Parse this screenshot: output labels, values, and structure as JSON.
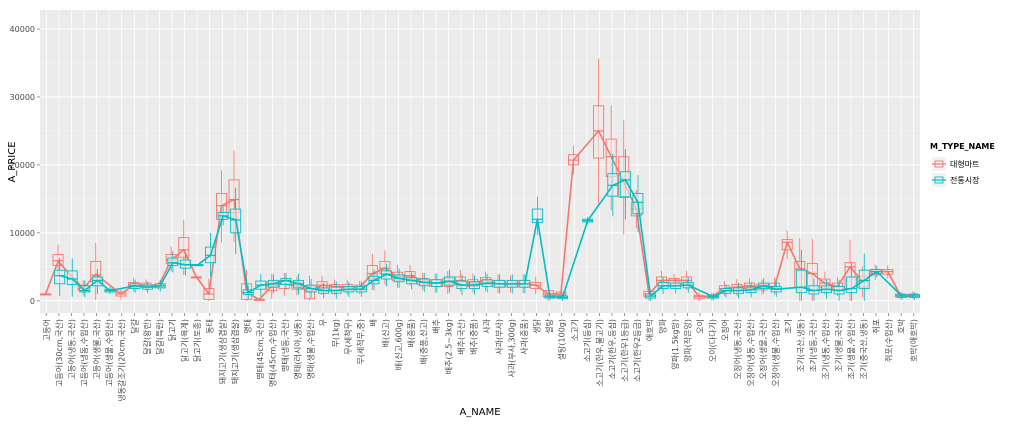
{
  "chart_data": {
    "type": "box_line",
    "xlabel": "A_NAME",
    "ylabel": "A_PRICE",
    "y_ticks": [
      0,
      10000,
      20000,
      30000,
      40000
    ],
    "ylim": [
      -1800,
      42800
    ],
    "grid": true,
    "background": "#ebebeb",
    "legend": {
      "title": "M_TYPE_NAME",
      "position": "right",
      "entries": [
        {
          "label": "대형마트",
          "color": "#f8766d"
        },
        {
          "label": "전통시장",
          "color": "#00bfc4"
        }
      ]
    },
    "categories": [
      "고등어",
      "고등어(30cm,국산)",
      "고등어(냉동,국산)",
      "고등어(냉동,수입산)",
      "고등어(생물,국산)",
      "고등어(생물,수입산)",
      "냉동갈조기(20cm,국산)",
      "달걀",
      "달걀(왕란)",
      "달걀(특란)",
      "닭고기",
      "닭고기(육계)",
      "닭고기(토종)",
      "동태",
      "돼지고기(생삼겹살)",
      "돼지고기(생삼겹살)",
      "명태",
      "명태(45cm,국산)",
      "명태(45cm,수입산)",
      "명태(냉동,국산)",
      "명태(러시아,냉동)",
      "명태(생물,수입산)",
      "무",
      "무(1kg)",
      "무(세척무)",
      "무(세척무,중)",
      "배",
      "배(신고)",
      "배(신고,600g)",
      "배(중품)",
      "배(중품,신고)",
      "배추",
      "배추(2.5~3kg)",
      "배추(국산)",
      "배추(중품)",
      "사과",
      "사과(부사)",
      "사과(부사,300g)",
      "사과(중품)",
      "생닭",
      "설탕",
      "설탕(100g)",
      "소고기",
      "소고기(등심)",
      "소고기(한우,불고기)",
      "소고기(한우,등심)",
      "소고기(한우1등급)",
      "소고기(한우2등급)",
      "애호박",
      "양파",
      "양파(1.5kg망)",
      "양파(작은망)",
      "오이",
      "오이(다다기)",
      "오징어",
      "오징어(냉동,국산)",
      "오징어(냉동,수입산)",
      "오징어(생물,국산)",
      "오징어(생물,수입산)",
      "조기",
      "조기(국산,냉동)",
      "조기(냉동,국산)",
      "조기(냉동,수입산)",
      "조기(생물,국산)",
      "조기(생물,수입산)",
      "조기(중국산,냉동)",
      "쥐포",
      "쥐포(수입산)",
      "호박",
      "호박(애호박)"
    ],
    "series": [
      {
        "name": "대형마트",
        "color": "#f8766d",
        "mean": [
          1000,
          5800,
          null,
          1800,
          3900,
          null,
          1000,
          2300,
          2300,
          2200,
          6000,
          7500,
          3500,
          1000,
          14000,
          14900,
          1200,
          200,
          2200,
          2500,
          2200,
          1300,
          2300,
          2100,
          2000,
          2000,
          4000,
          4800,
          3500,
          3700,
          2900,
          2600,
          2700,
          3000,
          2600,
          3000,
          2500,
          2400,
          2500,
          2300,
          1000,
          1000,
          20700,
          null,
          25000,
          21200,
          17500,
          13500,
          1000,
          3000,
          3000,
          3000,
          600,
          600,
          1800,
          2000,
          2200,
          2000,
          2100,
          8600,
          4700,
          4000,
          2600,
          2100,
          5000,
          2800,
          4300,
          4300,
          800,
          800
        ],
        "box": [
          [
            1000,
            1000,
            1000
          ],
          [
            5200,
            5900,
            6800
          ],
          null,
          [
            1500,
            1800,
            2300
          ],
          [
            2800,
            3800,
            5800
          ],
          null,
          [
            700,
            1000,
            1300
          ],
          [
            2000,
            2300,
            2700
          ],
          [
            2000,
            2300,
            2600
          ],
          [
            2000,
            2200,
            2400
          ],
          [
            5500,
            6000,
            6800
          ],
          [
            6400,
            7500,
            9300
          ],
          [
            3500,
            3500,
            3500
          ],
          [
            200,
            1000,
            1800
          ],
          [
            12000,
            14000,
            15800
          ],
          [
            13000,
            14900,
            17800
          ],
          [
            200,
            1200,
            2500
          ],
          [
            200,
            200,
            200
          ],
          [
            1500,
            2200,
            2800
          ],
          [
            1800,
            2500,
            3000
          ],
          [
            1700,
            2200,
            2700
          ],
          [
            300,
            1300,
            2100
          ],
          [
            1800,
            2300,
            2800
          ],
          [
            1600,
            2100,
            2400
          ],
          [
            1600,
            2000,
            2400
          ],
          [
            1600,
            2000,
            2300
          ],
          [
            3300,
            4000,
            5200
          ],
          [
            4000,
            4800,
            5800
          ],
          [
            3000,
            3500,
            4200
          ],
          [
            3200,
            3700,
            4300
          ],
          [
            2400,
            2900,
            3300
          ],
          [
            2100,
            2600,
            3100
          ],
          [
            2100,
            2700,
            3300
          ],
          [
            2400,
            3000,
            3500
          ],
          [
            2100,
            2600,
            3100
          ],
          [
            2400,
            3000,
            3400
          ],
          [
            2000,
            2500,
            3000
          ],
          [
            2000,
            2400,
            2900
          ],
          [
            2000,
            2500,
            3000
          ],
          [
            1800,
            2300,
            2700
          ],
          [
            600,
            1000,
            1500
          ],
          [
            800,
            1000,
            1300
          ],
          [
            20000,
            20700,
            21500
          ],
          null,
          [
            21000,
            25000,
            28700
          ],
          [
            18300,
            21200,
            23800
          ],
          [
            15200,
            17500,
            21200
          ],
          [
            12500,
            13500,
            14500
          ],
          [
            600,
            1000,
            1400
          ],
          [
            2500,
            3000,
            3500
          ],
          [
            2600,
            3000,
            3300
          ],
          [
            2500,
            3000,
            3500
          ],
          [
            300,
            600,
            800
          ],
          [
            400,
            600,
            800
          ],
          [
            1400,
            1800,
            2200
          ],
          [
            1500,
            2000,
            2400
          ],
          [
            1800,
            2200,
            2600
          ],
          [
            1600,
            2000,
            2400
          ],
          [
            1700,
            2100,
            2600
          ],
          [
            7500,
            8600,
            9000
          ],
          [
            2000,
            4700,
            5800
          ],
          [
            1500,
            4000,
            5500
          ],
          [
            2000,
            2600,
            3200
          ],
          [
            1600,
            2100,
            2600
          ],
          [
            1800,
            5000,
            5600
          ],
          [
            2000,
            2800,
            3600
          ],
          [
            3800,
            4300,
            4600
          ],
          [
            3900,
            4300,
            4600
          ],
          [
            600,
            800,
            1000
          ],
          [
            600,
            800,
            1000
          ]
        ]
      },
      {
        "name": "전통시장",
        "color": "#00bfc4",
        "mean": [
          null,
          3700,
          3200,
          1500,
          3000,
          1500,
          null,
          2200,
          2000,
          2200,
          5600,
          5300,
          5300,
          6700,
          12500,
          11900,
          1200,
          2300,
          2500,
          3000,
          2500,
          1800,
          1500,
          1500,
          1700,
          1700,
          3000,
          3900,
          3300,
          3000,
          2700,
          2600,
          2900,
          2300,
          2300,
          2600,
          2500,
          2500,
          2500,
          12000,
          600,
          500,
          null,
          11800,
          null,
          17000,
          17800,
          14500,
          700,
          2200,
          2200,
          2300,
          null,
          600,
          1500,
          1500,
          1600,
          2200,
          1700,
          null,
          2000,
          1500,
          1700,
          1500,
          1800,
          3000,
          4300,
          null,
          700,
          700
        ],
        "box": [
          null,
          [
            2500,
            3700,
            4500
          ],
          [
            2400,
            3200,
            4400
          ],
          [
            1300,
            1500,
            2200
          ],
          [
            2200,
            3000,
            3500
          ],
          [
            1300,
            1500,
            1700
          ],
          null,
          [
            1800,
            2200,
            2500
          ],
          [
            1700,
            2000,
            2300
          ],
          [
            1900,
            2200,
            2500
          ],
          [
            5200,
            5600,
            6300
          ],
          [
            4800,
            5300,
            6000
          ],
          [
            5300,
            5300,
            5300
          ],
          [
            5600,
            6700,
            7900
          ],
          [
            12000,
            12500,
            13000
          ],
          [
            10000,
            11900,
            13500
          ],
          [
            900,
            1200,
            1600
          ],
          [
            1700,
            2300,
            2900
          ],
          [
            2000,
            2500,
            3000
          ],
          [
            2400,
            3000,
            3300
          ],
          [
            1900,
            2500,
            3000
          ],
          [
            1300,
            1800,
            2300
          ],
          [
            1100,
            1500,
            1900
          ],
          [
            1100,
            1500,
            2000
          ],
          [
            1300,
            1700,
            2100
          ],
          [
            1300,
            1700,
            2100
          ],
          [
            2500,
            3000,
            3600
          ],
          [
            3200,
            3900,
            4400
          ],
          [
            2800,
            3300,
            3800
          ],
          [
            2500,
            3000,
            3400
          ],
          [
            2200,
            2700,
            3200
          ],
          [
            2100,
            2600,
            3100
          ],
          [
            2300,
            2900,
            3500
          ],
          [
            1800,
            2300,
            2900
          ],
          [
            1800,
            2300,
            2800
          ],
          [
            2100,
            2600,
            3100
          ],
          [
            2000,
            2500,
            3000
          ],
          [
            2000,
            2500,
            3000
          ],
          [
            2000,
            2500,
            3000
          ],
          [
            11500,
            12000,
            13500
          ],
          [
            400,
            600,
            800
          ],
          [
            300,
            500,
            700
          ],
          null,
          [
            11600,
            11800,
            12000
          ],
          null,
          [
            15400,
            17000,
            18700
          ],
          [
            15300,
            17800,
            19000
          ],
          [
            12800,
            14500,
            15800
          ],
          [
            400,
            700,
            1000
          ],
          [
            1800,
            2200,
            2700
          ],
          [
            1800,
            2200,
            2600
          ],
          [
            1900,
            2300,
            2700
          ],
          null,
          [
            400,
            600,
            800
          ],
          [
            1100,
            1500,
            1800
          ],
          [
            1100,
            1500,
            1900
          ],
          [
            1200,
            1600,
            2000
          ],
          [
            1800,
            2200,
            2600
          ],
          [
            1300,
            1700,
            2100
          ],
          null,
          [
            1200,
            2000,
            4500
          ],
          [
            1000,
            1500,
            2200
          ],
          [
            1200,
            1700,
            2200
          ],
          [
            1000,
            1500,
            2100
          ],
          [
            1200,
            1800,
            3500
          ],
          [
            1800,
            3000,
            4500
          ],
          [
            4000,
            4300,
            4600
          ],
          null,
          [
            500,
            700,
            900
          ],
          [
            500,
            700,
            900
          ]
        ]
      }
    ]
  }
}
